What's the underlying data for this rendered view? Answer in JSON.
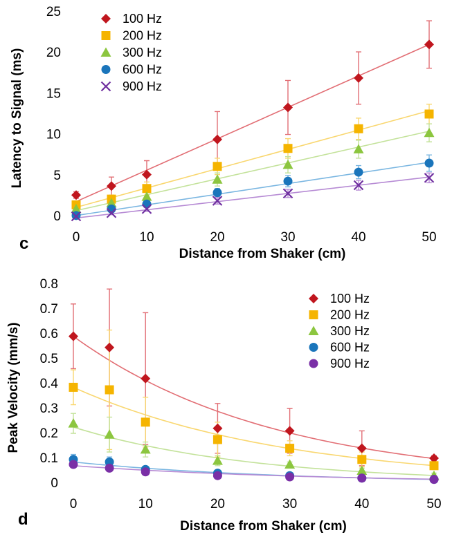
{
  "chart_data": [
    {
      "type": "scatter",
      "panel_label": "c",
      "xlabel": "Distance from Shaker (cm)",
      "ylabel": "Latency to Signal (ms)",
      "xlim": [
        0,
        50
      ],
      "ylim": [
        0,
        25
      ],
      "xticks": [
        0,
        10,
        20,
        30,
        40,
        50
      ],
      "yticks": [
        0,
        5,
        10,
        15,
        20,
        25
      ],
      "legend_placement": "top-left",
      "grid": false,
      "x": [
        0,
        5,
        10,
        20,
        30,
        40,
        50
      ],
      "series": [
        {
          "name": "100 Hz",
          "marker": "diamond",
          "color": "#c0161e",
          "line_color": "#e26e74",
          "values": [
            2.6,
            3.7,
            5.1,
            9.4,
            13.3,
            16.9,
            21.0
          ],
          "errors": [
            0.4,
            1.1,
            1.7,
            3.4,
            3.3,
            3.2,
            2.9
          ],
          "fit": [
            1.8,
            21.0
          ]
        },
        {
          "name": "200 Hz",
          "marker": "square",
          "color": "#f5b400",
          "line_color": "#f9d770",
          "values": [
            1.4,
            2.1,
            3.4,
            6.1,
            8.3,
            10.7,
            12.5
          ],
          "errors": [
            0.3,
            0.5,
            0.8,
            1.0,
            1.2,
            1.3,
            1.2
          ],
          "fit": [
            1.1,
            12.9
          ]
        },
        {
          "name": "300 Hz",
          "marker": "triangle",
          "color": "#8cc63f",
          "line_color": "#c3e29a",
          "values": [
            0.9,
            1.6,
            2.4,
            4.5,
            6.3,
            8.2,
            10.2
          ],
          "errors": [
            0.2,
            0.4,
            0.6,
            0.8,
            1.0,
            1.1,
            1.1
          ],
          "fit": [
            0.7,
            10.4
          ]
        },
        {
          "name": "600 Hz",
          "marker": "circle",
          "color": "#1a75bb",
          "line_color": "#7ab6e1",
          "values": [
            0.1,
            0.9,
            1.5,
            2.9,
            4.3,
            5.4,
            6.5
          ],
          "errors": [
            0.1,
            0.3,
            0.4,
            0.5,
            0.7,
            0.8,
            1.0
          ],
          "fit": [
            0.1,
            6.6
          ]
        },
        {
          "name": "900 Hz",
          "marker": "x",
          "color": "#7030a0",
          "line_color": "#b68ad4",
          "values": [
            0.0,
            0.4,
            0.9,
            1.9,
            2.8,
            3.8,
            4.7
          ],
          "errors": [
            0.1,
            0.2,
            0.3,
            0.4,
            0.5,
            0.6,
            0.6
          ],
          "fit": [
            -0.2,
            4.8
          ]
        }
      ]
    },
    {
      "type": "scatter",
      "panel_label": "d",
      "xlabel": "Distance from Shaker (cm)",
      "ylabel": "Peak  Velocity (mm/s)",
      "xlim": [
        0,
        50
      ],
      "ylim": [
        0,
        0.8
      ],
      "xticks": [
        0,
        10,
        20,
        30,
        40,
        50
      ],
      "yticks": [
        0,
        0.1,
        0.2,
        0.3,
        0.4,
        0.5,
        0.6,
        0.7,
        0.8
      ],
      "legend_placement": "top-right",
      "grid": false,
      "x": [
        0,
        5,
        10,
        20,
        30,
        40,
        50
      ],
      "series": [
        {
          "name": "100 Hz",
          "marker": "diamond",
          "color": "#c0161e",
          "line_color": "#e26e74",
          "values": [
            0.59,
            0.545,
            0.42,
            0.22,
            0.21,
            0.14,
            0.1
          ],
          "errors": [
            0.13,
            0.235,
            0.265,
            0.1,
            0.09,
            0.07,
            0.01
          ],
          "fit_exp": [
            0.59,
            0.0358
          ]
        },
        {
          "name": "200 Hz",
          "marker": "square",
          "color": "#f5b400",
          "line_color": "#f9d770",
          "values": [
            0.385,
            0.375,
            0.245,
            0.175,
            0.14,
            0.095,
            0.07
          ],
          "errors": [
            0.07,
            0.24,
            0.1,
            0.07,
            0.03,
            0.03,
            0.01
          ],
          "fit_exp": [
            0.385,
            0.034
          ]
        },
        {
          "name": "300 Hz",
          "marker": "triangle",
          "color": "#8cc63f",
          "line_color": "#c3e29a",
          "values": [
            0.24,
            0.195,
            0.135,
            0.09,
            0.075,
            0.05,
            0.03
          ],
          "errors": [
            0.04,
            0.07,
            0.03,
            0.02,
            0.01,
            0.01,
            0.01
          ],
          "fit_exp": [
            0.225,
            0.04
          ]
        },
        {
          "name": "600 Hz",
          "marker": "circle",
          "color": "#1a75bb",
          "line_color": "#7ab6e1",
          "values": [
            0.095,
            0.085,
            0.055,
            0.04,
            0.03,
            0.02,
            0.015
          ],
          "errors": [
            0.02,
            0.02,
            0.01,
            0.01,
            0.005,
            0.005,
            0.005
          ],
          "fit_exp": [
            0.085,
            0.035
          ]
        },
        {
          "name": "900 Hz",
          "marker": "circle",
          "color": "#7a2fa6",
          "line_color": "#b68ad4",
          "values": [
            0.075,
            0.06,
            0.045,
            0.03,
            0.025,
            0.02,
            0.015
          ],
          "errors": [
            0.01,
            0.01,
            0.01,
            0.005,
            0.005,
            0.005,
            0.005
          ],
          "fit_exp": [
            0.07,
            0.03
          ]
        }
      ]
    }
  ]
}
